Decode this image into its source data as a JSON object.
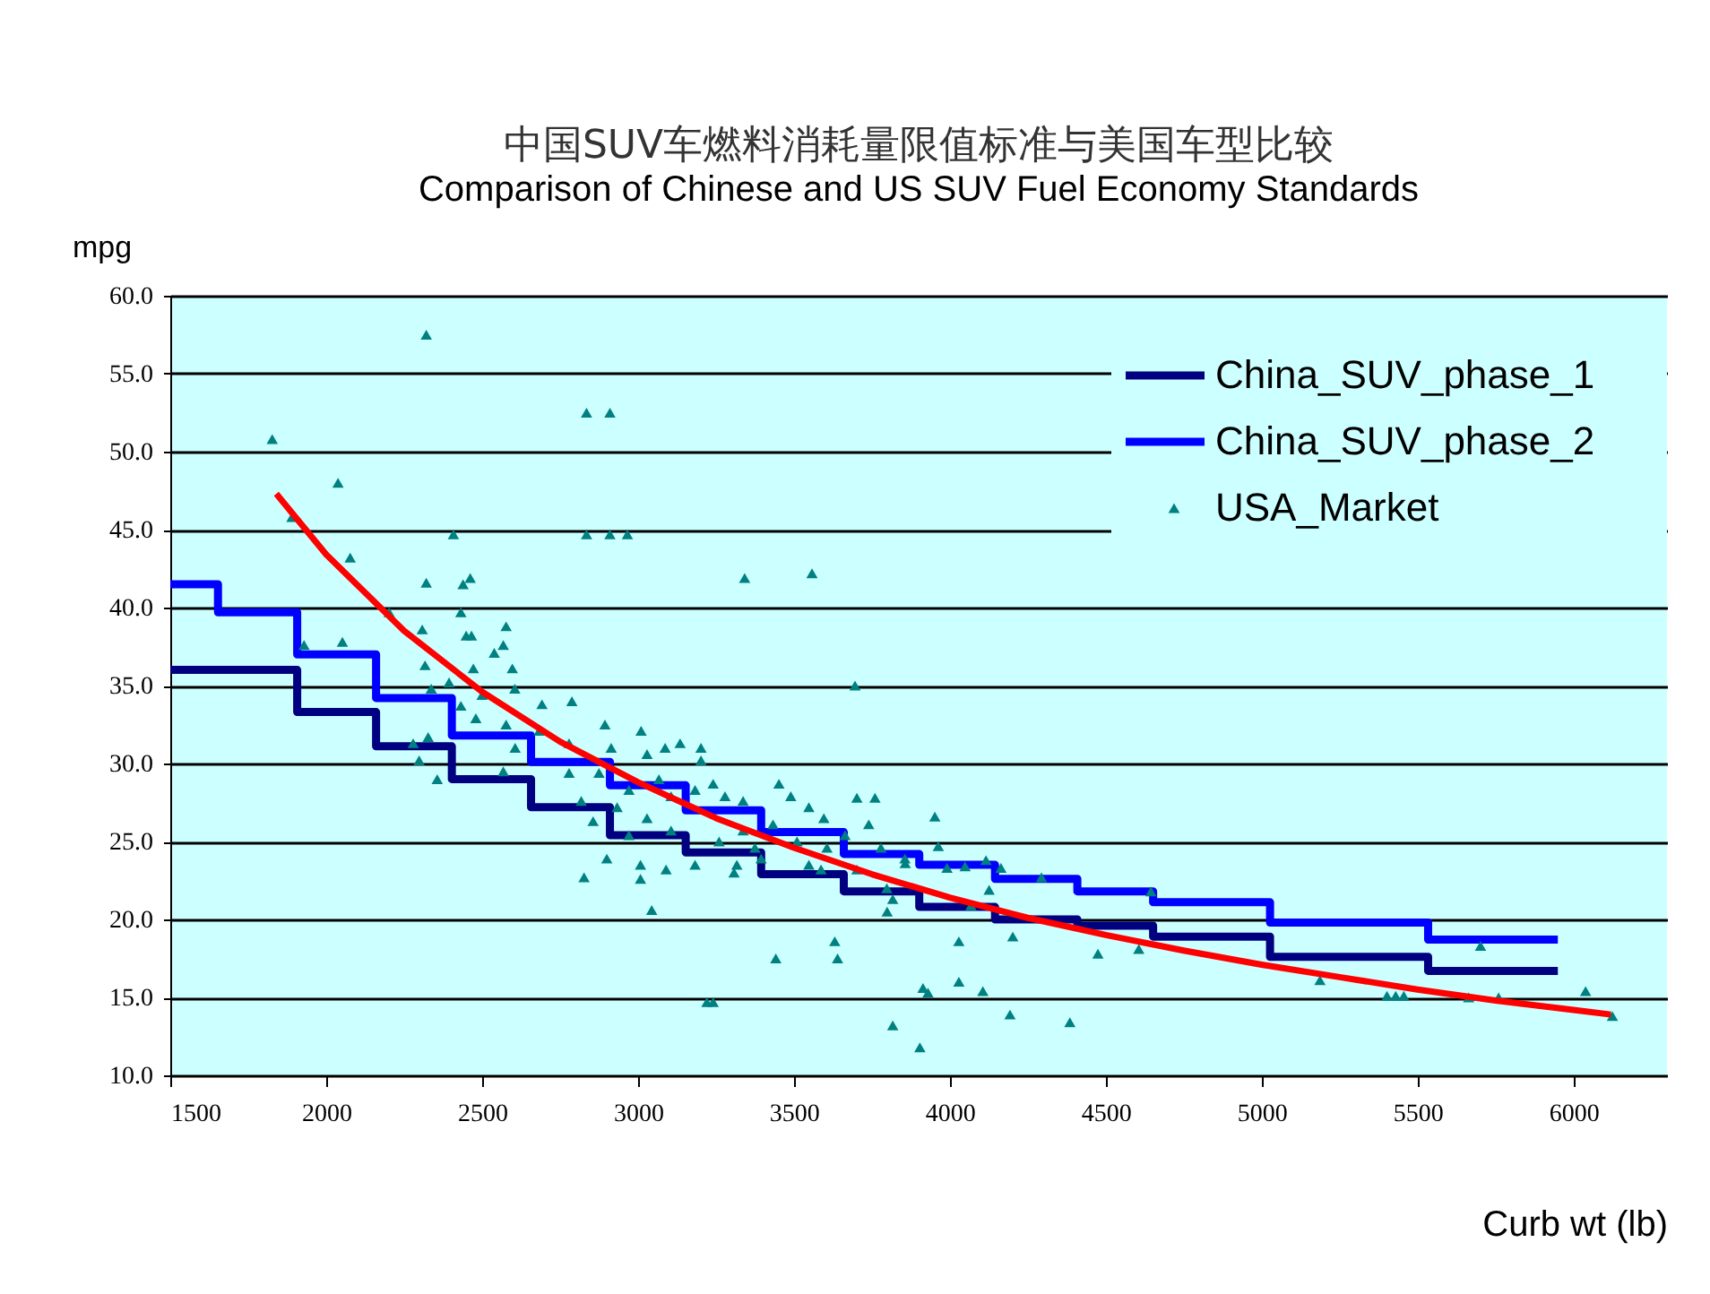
{
  "chart_data": {
    "type": "scatter",
    "title": "中国SUV车燃料消耗量限值标准与美国车型比较",
    "subtitle": "Comparison of Chinese and US SUV Fuel Economy Standards",
    "xlabel": "Curb wt (lb)",
    "ylabel": "mpg",
    "xlim": [
      1500,
      6300
    ],
    "xticks": [
      1500,
      2000,
      2500,
      3000,
      3500,
      4000,
      4500,
      5000,
      5500,
      6000
    ],
    "ylim": [
      10,
      60
    ],
    "yticks": [
      {
        "value": 10,
        "label": "10.0"
      },
      {
        "value": 15,
        "label": "15.0"
      },
      {
        "value": 20,
        "label": "20.0"
      },
      {
        "value": 25,
        "label": "25.0"
      },
      {
        "value": 30,
        "label": "30.0"
      },
      {
        "value": 35,
        "label": "35.0"
      },
      {
        "value": 40,
        "label": "40.0"
      },
      {
        "value": 45,
        "label": "45.0"
      },
      {
        "value": 50,
        "label": "50.0"
      },
      {
        "value": 55,
        "label": "55.0"
      },
      {
        "value": 60,
        "label": "60.0"
      }
    ],
    "grid": "y",
    "legend": "top right",
    "series": [
      {
        "name": "China_SUV_phase_1",
        "type": "step",
        "color": "#000080",
        "x": [
          1500,
          1653,
          1907,
          2160,
          2403,
          2657,
          2910,
          3153,
          3395,
          3660,
          3902,
          4145,
          4409,
          4652,
          5027,
          5534,
          5950
        ],
        "values": [
          36.0,
          36.0,
          33.3,
          31.1,
          29.0,
          27.2,
          25.4,
          24.3,
          22.9,
          21.8,
          20.8,
          20.0,
          19.6,
          18.9,
          17.6,
          16.7,
          16.7
        ]
      },
      {
        "name": "China_SUV_phase_2",
        "type": "step",
        "color": "#0000ff",
        "x": [
          1500,
          1653,
          1907,
          2160,
          2403,
          2657,
          2910,
          3153,
          3395,
          3660,
          3902,
          4145,
          4409,
          4652,
          5027,
          5534,
          5950
        ],
        "values": [
          41.5,
          39.7,
          37.0,
          34.2,
          31.8,
          30.1,
          28.6,
          27.0,
          25.6,
          24.2,
          23.5,
          22.6,
          21.8,
          21.1,
          19.8,
          18.7,
          18.7
        ]
      },
      {
        "name": "USA_Market",
        "marker": "triangle",
        "color": "#008080",
        "x": [
          2321,
          1827,
          2835,
          2910,
          2038,
          2408,
          2835,
          2910,
          2966,
          2077,
          3342,
          3558,
          3696,
          2321,
          2439,
          2462,
          1929,
          1890,
          2052,
          3221,
          3241,
          3044,
          2827,
          2900,
          3008,
          3008,
          3090,
          3442,
          3631,
          3640,
          3817,
          3930,
          3904,
          3914,
          4029,
          4106,
          4029,
          4202,
          4193,
          4385,
          4475,
          4606,
          3952,
          4645,
          4294,
          5187,
          5402,
          5430,
          5456,
          5664,
          5760,
          5702,
          6039,
          6125,
          3799,
          3857,
          3963,
          3991,
          4049,
          4116,
          4164,
          4068,
          4126,
          2432,
          2449,
          2466,
          2577,
          2568,
          2539,
          2597,
          2317,
          2308,
          2337,
          2394,
          2472,
          2500,
          2605,
          2432,
          2480,
          2279,
          2327,
          2298,
          2356,
          2577,
          2606,
          2568,
          2692,
          2788,
          2683,
          2779,
          2894,
          2914,
          3010,
          3029,
          3087,
          3135,
          3202,
          3202,
          2779,
          2875,
          2971,
          3067,
          3106,
          2818,
          2933,
          3029,
          3106,
          2856,
          2971,
          3183,
          3241,
          3279,
          3337,
          3452,
          3490,
          3548,
          3596,
          3702,
          3760,
          3740,
          3433,
          3337,
          3260,
          3375,
          3510,
          3606,
          3664,
          3779,
          3856,
          3395,
          3548,
          3702,
          3798,
          3817,
          3587,
          3317,
          3183,
          3308,
          2202
        ],
        "values": [
          57.5,
          50.8,
          52.5,
          52.5,
          48.0,
          44.7,
          44.7,
          44.7,
          44.7,
          43.2,
          41.9,
          42.2,
          35.0,
          41.6,
          41.5,
          41.9,
          37.6,
          45.8,
          37.8,
          14.7,
          14.7,
          20.6,
          22.7,
          23.9,
          23.5,
          22.6,
          23.2,
          17.5,
          18.6,
          17.5,
          13.2,
          15.3,
          11.8,
          15.6,
          16.0,
          15.4,
          18.6,
          18.9,
          13.9,
          13.4,
          17.8,
          18.1,
          26.6,
          21.8,
          22.7,
          16.1,
          15.1,
          15.1,
          15.1,
          15.0,
          15.0,
          18.3,
          15.4,
          13.8,
          20.5,
          23.6,
          24.7,
          23.3,
          23.4,
          23.8,
          23.3,
          20.9,
          21.9,
          39.7,
          38.2,
          38.2,
          38.8,
          37.6,
          37.1,
          36.1,
          36.3,
          38.6,
          34.8,
          35.2,
          36.1,
          34.4,
          34.8,
          33.7,
          32.9,
          31.3,
          31.7,
          30.2,
          29.0,
          32.5,
          31.0,
          29.5,
          33.8,
          34.0,
          32.1,
          31.3,
          32.5,
          31.0,
          32.1,
          30.6,
          31.0,
          31.3,
          31.0,
          30.2,
          29.4,
          29.4,
          28.3,
          29.0,
          27.9,
          27.6,
          27.2,
          26.5,
          25.7,
          26.3,
          25.4,
          28.3,
          28.7,
          27.9,
          27.6,
          28.7,
          27.9,
          27.2,
          26.5,
          27.8,
          27.8,
          26.1,
          26.1,
          25.7,
          25.0,
          24.6,
          25.0,
          24.6,
          25.4,
          24.6,
          23.9,
          23.9,
          23.5,
          23.2,
          22.0,
          21.3,
          23.2,
          23.5,
          23.5,
          23.0,
          39.7
        ]
      },
      {
        "type": "line",
        "color": "#ff0000",
        "x": [
          1840,
          2000,
          2250,
          2500,
          2750,
          3000,
          3250,
          3500,
          3750,
          4000,
          4250,
          4500,
          4750,
          5000,
          5250,
          5500,
          5750,
          6000,
          6120
        ],
        "values": [
          47.3,
          43.4,
          38.5,
          34.6,
          31.4,
          28.8,
          26.5,
          24.6,
          22.9,
          21.4,
          20.1,
          19.0,
          18.0,
          17.1,
          16.3,
          15.5,
          14.8,
          14.2,
          13.9
        ]
      }
    ]
  }
}
